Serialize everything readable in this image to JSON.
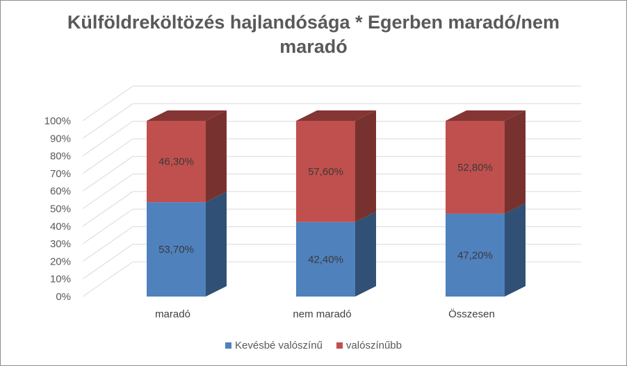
{
  "chart_data": {
    "type": "bar",
    "stacked": true,
    "three_d": true,
    "title_lines": [
      "Külföldreköltözés hajlandósága * Egerben maradó/nem",
      "maradó"
    ],
    "categories": [
      "maradó",
      "nem maradó",
      "Összesen"
    ],
    "series": [
      {
        "name": "Kevésbé valószínű",
        "values": [
          53.7,
          42.4,
          47.2
        ],
        "labels": [
          "53,70%",
          "42,40%",
          "47,20%"
        ],
        "color": "#4f81bd"
      },
      {
        "name": "valószínűbb",
        "values": [
          46.3,
          57.6,
          52.8
        ],
        "labels": [
          "46,30%",
          "57,60%",
          "52,80%"
        ],
        "color": "#c0504d"
      }
    ],
    "y_ticks": [
      "0%",
      "10%",
      "20%",
      "30%",
      "40%",
      "50%",
      "60%",
      "70%",
      "80%",
      "90%",
      "100%"
    ],
    "ylim": [
      0,
      100
    ],
    "grid": true,
    "legend_position": "bottom"
  }
}
